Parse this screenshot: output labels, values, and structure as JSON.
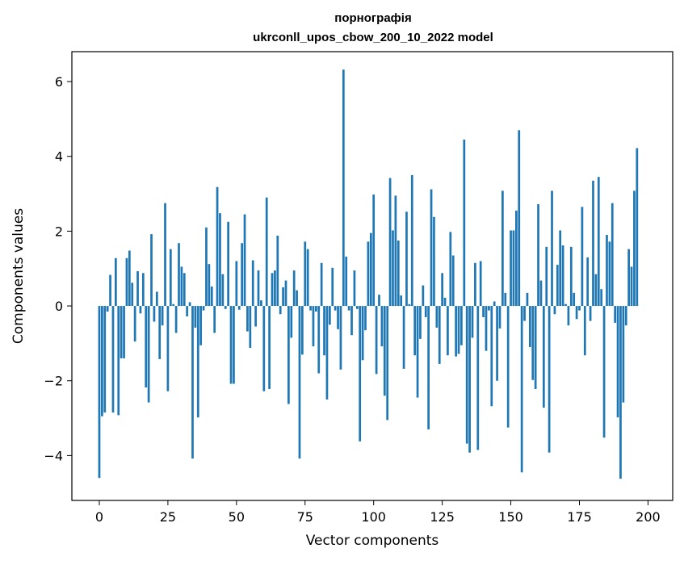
{
  "chart_data": {
    "type": "bar",
    "title_line1": "порнографія",
    "title_line2": "ukrconll_upos_cbow_200_10_2022 model",
    "xlabel": "Vector components",
    "ylabel": "Components values",
    "xlim": [
      -10,
      209
    ],
    "ylim": [
      -5.2,
      6.8
    ],
    "xticks": [
      0,
      25,
      50,
      75,
      100,
      125,
      150,
      175,
      200
    ],
    "yticks": [
      -4,
      -2,
      0,
      2,
      4,
      6
    ],
    "ytick_labels": [
      "−4",
      "−2",
      "0",
      "2",
      "4",
      "6"
    ],
    "bar_color": "#1f77b4",
    "grid": false,
    "values": [
      -4.6,
      -2.95,
      -2.85,
      -0.15,
      0.83,
      -2.85,
      1.28,
      -2.92,
      -1.4,
      -1.4,
      1.28,
      1.48,
      0.62,
      -0.95,
      0.93,
      -0.2,
      0.88,
      -2.18,
      -2.58,
      1.92,
      -0.42,
      0.38,
      -1.42,
      -0.52,
      2.75,
      -2.28,
      1.52,
      0.05,
      -0.72,
      1.68,
      1.05,
      0.88,
      -0.28,
      0.1,
      -4.08,
      -0.58,
      -2.98,
      -1.05,
      -0.12,
      2.1,
      1.12,
      0.52,
      -0.72,
      3.18,
      2.48,
      0.85,
      -0.08,
      2.25,
      -2.08,
      -2.08,
      1.2,
      -0.1,
      1.68,
      2.45,
      -0.68,
      -1.12,
      1.22,
      -0.55,
      0.95,
      0.15,
      -2.28,
      2.9,
      -2.22,
      0.88,
      0.95,
      1.88,
      -0.22,
      0.5,
      0.68,
      -2.62,
      -0.85,
      0.95,
      0.42,
      -4.08,
      -1.3,
      1.72,
      1.52,
      -0.12,
      -1.08,
      -0.15,
      -1.8,
      1.15,
      -1.32,
      -2.5,
      -0.5,
      1.02,
      -0.12,
      -0.62,
      -1.7,
      6.32,
      1.32,
      -0.12,
      -0.78,
      0.95,
      -0.08,
      -3.62,
      -1.45,
      -0.65,
      1.72,
      1.95,
      2.98,
      -1.82,
      0.3,
      -1.08,
      -2.4,
      -3.05,
      3.42,
      2.02,
      2.95,
      1.75,
      0.28,
      -1.68,
      2.52,
      0.05,
      3.5,
      -1.32,
      -2.45,
      -0.88,
      0.55,
      -0.3,
      -3.3,
      3.12,
      2.38,
      -0.58,
      -1.55,
      0.88,
      0.22,
      -1.32,
      1.98,
      1.35,
      -1.35,
      -1.28,
      -1.05,
      4.45,
      -3.68,
      -3.92,
      -0.85,
      1.15,
      -3.85,
      1.2,
      -0.3,
      -1.2,
      -0.12,
      -2.68,
      0.12,
      -2.0,
      -0.6,
      3.08,
      0.35,
      -3.25,
      2.02,
      2.02,
      2.55,
      4.7,
      -4.45,
      -0.4,
      0.35,
      -1.1,
      -1.98,
      -2.22,
      2.72,
      0.68,
      -2.72,
      1.58,
      -3.92,
      3.08,
      -0.22,
      1.1,
      2.02,
      1.62,
      0.05,
      -0.52,
      1.58,
      0.35,
      -0.35,
      -0.12,
      2.65,
      -1.32,
      1.3,
      -0.4,
      3.35,
      0.85,
      3.45,
      0.45,
      -3.52,
      1.9,
      1.72,
      2.75,
      -0.45,
      -2.98,
      -4.62,
      -2.58,
      -0.52,
      1.52,
      1.05,
      3.08,
      4.22
    ]
  }
}
